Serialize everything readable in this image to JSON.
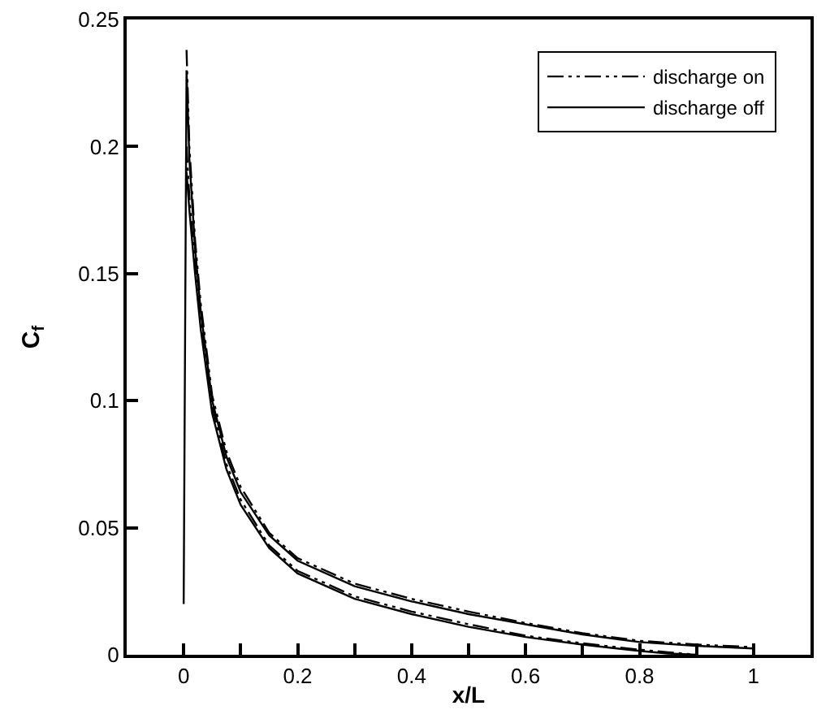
{
  "chart_data": {
    "type": "line",
    "xlabel": "x/L",
    "ylabel": "C$_{f}$",
    "xlim": [
      -0.1,
      1.1
    ],
    "ylim": [
      0,
      0.25
    ],
    "xticks": [
      0,
      {
        "value": 0.1,
        "label": null
      },
      0.2,
      {
        "value": 0.3,
        "label": null
      },
      0.4,
      {
        "value": 0.5,
        "label": null
      },
      0.6,
      {
        "value": 0.7,
        "label": null
      },
      0.8,
      {
        "value": 0.9,
        "label": null
      },
      1
    ],
    "yticks": [
      0,
      0.05,
      0.1,
      0.15,
      0.2,
      0.25
    ],
    "legend": "top right",
    "marker": "none",
    "series": [
      {
        "name": "discharge on",
        "color": "#000000",
        "line_style": "dashed",
        "x": [
          0.005,
          0.01,
          0.02,
          0.03,
          0.05,
          0.075,
          0.1,
          0.15,
          0.2,
          0.3,
          0.4,
          0.5,
          0.6,
          0.7,
          0.8,
          0.9,
          1.0
        ],
        "values": [
          0.238,
          0.2,
          0.163,
          0.138,
          0.102,
          0.08,
          0.066,
          0.048,
          0.038,
          0.028,
          0.022,
          0.017,
          0.0125,
          0.0085,
          0.0055,
          0.004,
          0.003
        ]
      },
      {
        "name": "discharge off",
        "color": "#000000",
        "line_style": "solid",
        "x": [
          0,
          0.005,
          0.01,
          0.02,
          0.03,
          0.05,
          0.075,
          0.1,
          0.15,
          0.2,
          0.3,
          0.4,
          0.5,
          0.6,
          0.7,
          0.8,
          0.9,
          1.0
        ],
        "values": [
          0.02,
          0.23,
          0.195,
          0.16,
          0.135,
          0.1,
          0.078,
          0.064,
          0.047,
          0.037,
          0.027,
          0.021,
          0.016,
          0.012,
          0.008,
          0.005,
          0.0035,
          0.0025
        ]
      },
      {
        "color": "#000000",
        "line_style": "dashed",
        "x": [
          0.005,
          0.01,
          0.02,
          0.03,
          0.05,
          0.075,
          0.1,
          0.15,
          0.2,
          0.3,
          0.4,
          0.5,
          0.6,
          0.7,
          0.8,
          0.85,
          0.9
        ],
        "values": [
          0.2,
          0.18,
          0.153,
          0.131,
          0.098,
          0.075,
          0.061,
          0.043,
          0.033,
          0.023,
          0.017,
          0.012,
          0.0075,
          0.0045,
          0.002,
          0.001,
          0
        ]
      },
      {
        "color": "#000000",
        "line_style": "solid",
        "x": [
          0.005,
          0.01,
          0.02,
          0.03,
          0.05,
          0.075,
          0.1,
          0.15,
          0.2,
          0.3,
          0.4,
          0.5,
          0.6,
          0.7,
          0.8,
          0.85,
          0.9
        ],
        "values": [
          0.19,
          0.175,
          0.15,
          0.128,
          0.095,
          0.073,
          0.059,
          0.042,
          0.032,
          0.022,
          0.016,
          0.011,
          0.007,
          0.004,
          0.0015,
          0.0005,
          0
        ]
      }
    ]
  }
}
